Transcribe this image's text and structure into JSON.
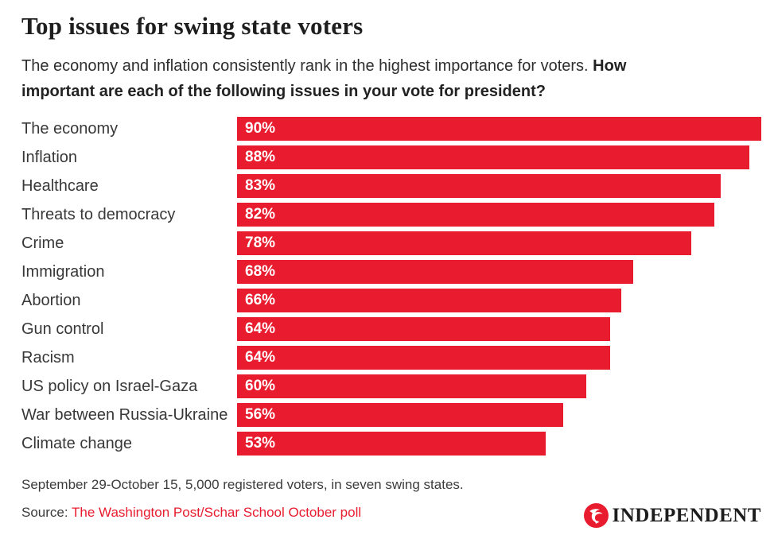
{
  "title": "Top issues for swing state voters",
  "subtitle": {
    "normal": "The economy and inflation consistently rank in the highest importance for voters. ",
    "bold_line1": "How",
    "bold_line2": "important are each of the following issues in your vote for president?"
  },
  "chart_data": {
    "type": "bar",
    "orientation": "horizontal",
    "categories": [
      "The economy",
      "Inflation",
      "Healthcare",
      "Threats to democracy",
      "Crime",
      "Immigration",
      "Abortion",
      "Gun control",
      "Racism",
      "US policy on Israel-Gaza",
      "War between Russia-Ukraine",
      "Climate change"
    ],
    "values": [
      90,
      88,
      83,
      82,
      78,
      68,
      66,
      64,
      64,
      60,
      56,
      53
    ],
    "value_suffix": "%",
    "value_labels": [
      "90%",
      "88%",
      "83%",
      "82%",
      "78%",
      "68%",
      "66%",
      "64%",
      "64%",
      "60%",
      "56%",
      "53%"
    ],
    "xlim": [
      0,
      90
    ],
    "grid": false,
    "legend": "none",
    "bar_color": "#e81c2e",
    "bar_label_color": "#ffffff"
  },
  "footer": {
    "methodology": "September 29-October 15, 5,000 registered voters, in seven swing states.",
    "source_label": "Source: ",
    "source_link": "The Washington Post/Schar School October poll",
    "source_link_color": "#e81c2e"
  },
  "logo": {
    "wordmark": "INDEPENDENT",
    "icon": "independent-eagle-icon",
    "circle_color": "#e81c2e"
  },
  "colors": {
    "accent": "#e81c2e",
    "title_text": "#1e1e1e",
    "body_text": "#383838",
    "background": "#ffffff"
  }
}
